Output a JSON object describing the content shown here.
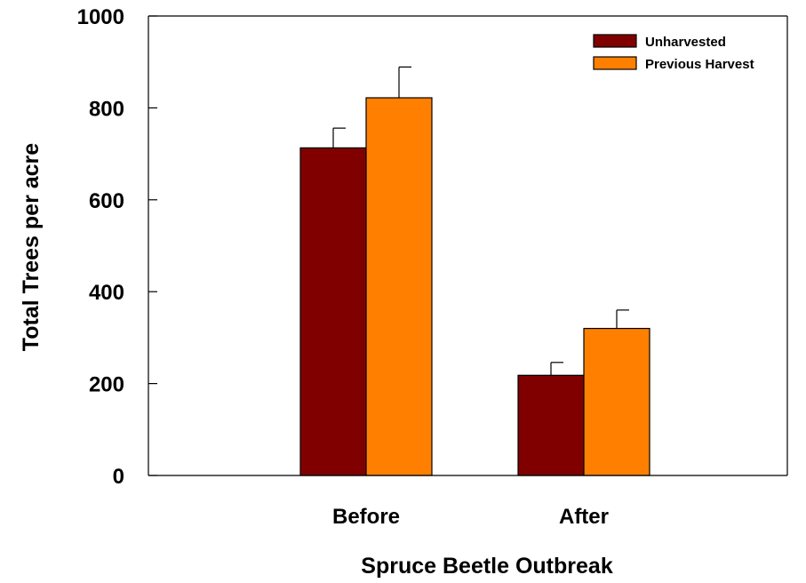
{
  "chart_data": {
    "type": "bar",
    "title": "",
    "xlabel": "Spruce Beetle Outbreak",
    "ylabel": "Total Trees per acre",
    "categories": [
      "Before",
      "After"
    ],
    "ylim": [
      0,
      1000
    ],
    "yticks": [
      0,
      200,
      400,
      600,
      800,
      1000
    ],
    "grid": false,
    "legend_position": "top-right",
    "series": [
      {
        "name": "Unharvested",
        "color": "#800000",
        "values": [
          713,
          218
        ],
        "errors": [
          43,
          28
        ]
      },
      {
        "name": "Previous Harvest",
        "color": "#FF8000",
        "values": [
          822,
          320
        ],
        "errors": [
          67,
          40
        ]
      }
    ]
  }
}
